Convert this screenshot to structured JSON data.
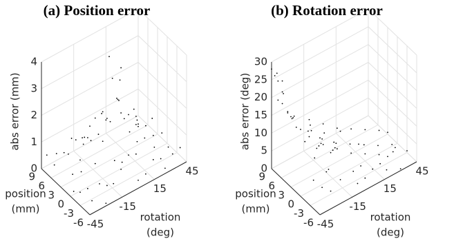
{
  "chart_data": [
    {
      "type": "scatter3d",
      "title": "(a) Position error",
      "zlabel": "abs error (mm)",
      "xlabel": [
        "position",
        "(mm)"
      ],
      "ylabel": [
        "rotation",
        "(deg)"
      ],
      "xlim": [
        -6,
        9
      ],
      "xticks": [
        9,
        6,
        3,
        0,
        -3,
        -6
      ],
      "ylim": [
        -45,
        45
      ],
      "yticks": [
        -45,
        -15,
        15,
        45
      ],
      "zlim": [
        0,
        4
      ],
      "zticks": [
        0,
        1,
        2,
        3,
        4
      ],
      "grid": true,
      "color": "#000000",
      "points": [
        [
          -5,
          -40,
          0.3
        ],
        [
          -4,
          -30,
          0.6
        ],
        [
          -3,
          -20,
          0.2
        ],
        [
          -2,
          -10,
          0.8
        ],
        [
          -1,
          0,
          0.4
        ],
        [
          0,
          10,
          1.2
        ],
        [
          1,
          20,
          0.5
        ],
        [
          2,
          30,
          0.3
        ],
        [
          3,
          40,
          0.7
        ],
        [
          4,
          -35,
          0.9
        ],
        [
          5,
          -25,
          1.1
        ],
        [
          6,
          -15,
          0.6
        ],
        [
          7,
          -5,
          0.4
        ],
        [
          8,
          5,
          0.3
        ],
        [
          9,
          15,
          0.5
        ],
        [
          -6,
          25,
          0.2
        ],
        [
          -5,
          35,
          0.4
        ],
        [
          -4,
          45,
          0.3
        ],
        [
          -3,
          -45,
          0.5
        ],
        [
          -2,
          -35,
          0.3
        ],
        [
          -1,
          -25,
          0.9
        ],
        [
          0,
          -15,
          1.4
        ],
        [
          1,
          -5,
          1.8
        ],
        [
          2,
          5,
          2.3
        ],
        [
          3,
          10,
          2.8
        ],
        [
          2,
          0,
          3.2
        ],
        [
          1,
          5,
          3.6
        ],
        [
          3,
          0,
          3.9
        ],
        [
          0,
          0,
          2.6
        ],
        [
          4,
          10,
          2.0
        ],
        [
          5,
          0,
          1.6
        ],
        [
          -1,
          15,
          1.5
        ],
        [
          6,
          20,
          1.0
        ],
        [
          7,
          30,
          0.6
        ],
        [
          8,
          40,
          0.2
        ],
        [
          9,
          -40,
          0.4
        ],
        [
          -6,
          -30,
          0.1
        ],
        [
          -5,
          -20,
          0.5
        ],
        [
          -4,
          -10,
          0.7
        ],
        [
          -3,
          0,
          0.9
        ],
        [
          -2,
          10,
          0.6
        ],
        [
          -1,
          30,
          0.3
        ],
        [
          0,
          40,
          0.5
        ],
        [
          1,
          -40,
          0.6
        ],
        [
          2,
          -30,
          0.8
        ],
        [
          3,
          -20,
          1.3
        ],
        [
          4,
          -10,
          1.7
        ],
        [
          5,
          20,
          0.9
        ],
        [
          6,
          35,
          0.4
        ],
        [
          7,
          -30,
          0.5
        ],
        [
          8,
          -20,
          0.7
        ],
        [
          9,
          0,
          0.6
        ],
        [
          -6,
          0,
          0.3
        ],
        [
          -5,
          10,
          0.2
        ],
        [
          -4,
          20,
          0.4
        ],
        [
          -3,
          30,
          0.1
        ],
        [
          -2,
          40,
          0.2
        ],
        [
          0,
          25,
          1.1
        ],
        [
          1,
          35,
          0.4
        ],
        [
          2,
          -10,
          2.1
        ],
        [
          4,
          -20,
          1.2
        ],
        [
          6,
          -40,
          0.8
        ],
        [
          8,
          -10,
          0.5
        ],
        [
          3,
          25,
          0.8
        ],
        [
          5,
          -45,
          0.6
        ],
        [
          7,
          10,
          0.9
        ],
        [
          -1,
          -45,
          0.3
        ],
        [
          0,
          -35,
          0.7
        ],
        [
          2,
          20,
          1.6
        ],
        [
          4,
          30,
          0.5
        ]
      ]
    },
    {
      "type": "scatter3d",
      "title": "(b) Rotation error",
      "zlabel": "abs error (deg)",
      "xlabel": [
        "position",
        "(mm)"
      ],
      "ylabel": [
        "rotation",
        "(deg)"
      ],
      "xlim": [
        -6,
        9
      ],
      "xticks": [
        9,
        6,
        3,
        0,
        -3,
        -6
      ],
      "ylim": [
        -45,
        45
      ],
      "yticks": [
        -45,
        -15,
        15,
        45
      ],
      "zlim": [
        0,
        30
      ],
      "zticks": [
        0,
        5,
        10,
        15,
        20,
        25,
        30
      ],
      "grid": true,
      "color": "#000000",
      "points": [
        [
          9,
          -45,
          28
        ],
        [
          8,
          -42,
          25
        ],
        [
          7,
          -40,
          22
        ],
        [
          8,
          -38,
          18
        ],
        [
          6,
          -35,
          15
        ],
        [
          9,
          -40,
          26
        ],
        [
          5,
          -30,
          12
        ],
        [
          7,
          -30,
          14
        ],
        [
          4,
          -25,
          10
        ],
        [
          6,
          -20,
          9
        ],
        [
          3,
          -15,
          7
        ],
        [
          5,
          -10,
          6
        ],
        [
          2,
          -5,
          5
        ],
        [
          4,
          0,
          4
        ],
        [
          1,
          5,
          3
        ],
        [
          3,
          10,
          3
        ],
        [
          0,
          15,
          2
        ],
        [
          2,
          20,
          2
        ],
        [
          -1,
          25,
          1
        ],
        [
          1,
          30,
          1
        ],
        [
          -2,
          35,
          1
        ],
        [
          0,
          40,
          0.5
        ],
        [
          -3,
          45,
          0.5
        ],
        [
          -4,
          -45,
          8
        ],
        [
          -5,
          -40,
          6
        ],
        [
          -6,
          -35,
          5
        ],
        [
          -3,
          -30,
          7
        ],
        [
          -2,
          -25,
          6
        ],
        [
          -1,
          -20,
          9
        ],
        [
          0,
          -15,
          8
        ],
        [
          1,
          -10,
          7
        ],
        [
          2,
          -35,
          12
        ],
        [
          3,
          -40,
          16
        ],
        [
          4,
          -45,
          20
        ],
        [
          5,
          -42,
          19
        ],
        [
          6,
          -44,
          24
        ],
        [
          7,
          -45,
          21
        ],
        [
          8,
          -30,
          13
        ],
        [
          9,
          -25,
          11
        ],
        [
          9,
          -10,
          8
        ],
        [
          8,
          0,
          6
        ],
        [
          7,
          10,
          4
        ],
        [
          6,
          20,
          3
        ],
        [
          5,
          30,
          2
        ],
        [
          4,
          40,
          1
        ],
        [
          3,
          45,
          0.5
        ],
        [
          -6,
          -10,
          3
        ],
        [
          -5,
          0,
          2
        ],
        [
          -4,
          10,
          2
        ],
        [
          -3,
          20,
          1
        ],
        [
          -2,
          30,
          0.5
        ],
        [
          -1,
          40,
          0.5
        ],
        [
          -6,
          30,
          0.5
        ],
        [
          -5,
          20,
          1
        ],
        [
          -4,
          -20,
          4
        ],
        [
          -3,
          -5,
          3
        ],
        [
          -2,
          5,
          2
        ],
        [
          -1,
          -35,
          10
        ],
        [
          0,
          -30,
          11
        ],
        [
          1,
          -25,
          10
        ],
        [
          2,
          -20,
          9
        ],
        [
          3,
          -5,
          6
        ],
        [
          4,
          -15,
          8
        ],
        [
          5,
          -20,
          10
        ],
        [
          6,
          -5,
          6
        ],
        [
          7,
          -15,
          9
        ],
        [
          8,
          -45,
          27
        ],
        [
          9,
          -35,
          23
        ],
        [
          6,
          10,
          4
        ],
        [
          2,
          15,
          3
        ]
      ]
    }
  ]
}
